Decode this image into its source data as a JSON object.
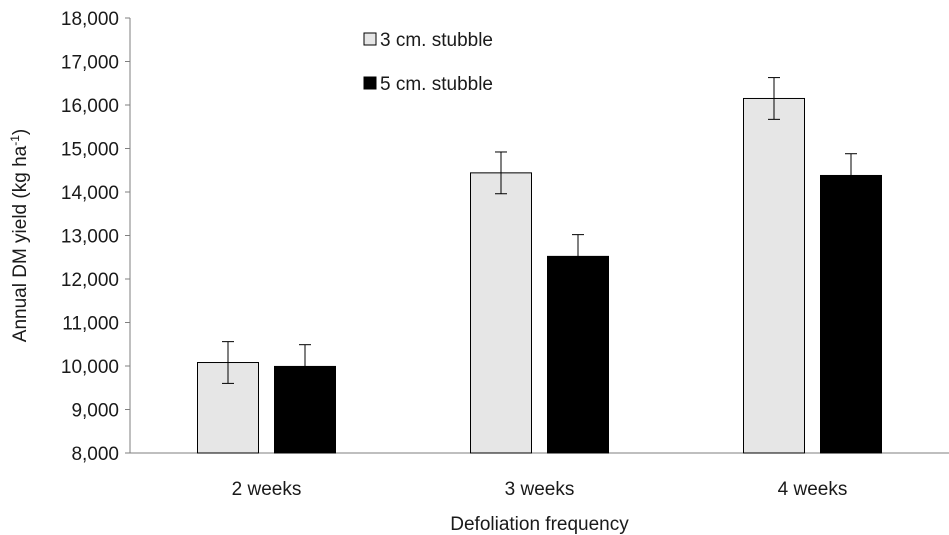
{
  "chart_data": {
    "type": "bar",
    "xlabel": "Defoliation frequency",
    "ylabel_main": "Annual DM yield (kg ha",
    "ylabel_sup": "-1",
    "ylabel_close": ")",
    "ylim": [
      8000,
      18000
    ],
    "yticks": [
      8000,
      9000,
      10000,
      11000,
      12000,
      13000,
      14000,
      15000,
      16000,
      17000,
      18000
    ],
    "ytick_labels": [
      "8,000",
      "9,000",
      "10,000",
      "11,000",
      "12,000",
      "13,000",
      "14,000",
      "15,000",
      "16,000",
      "17,000",
      "18,000"
    ],
    "categories": [
      "2 weeks",
      "3 weeks",
      "4 weeks"
    ],
    "series": [
      {
        "name": "3 cm. stubble",
        "color": "#e6e6e6",
        "values": [
          10080,
          14440,
          16150
        ],
        "errors": [
          480,
          480,
          480
        ]
      },
      {
        "name": "5 cm. stubble",
        "color": "#000000",
        "values": [
          9990,
          12520,
          14380
        ],
        "errors": [
          500,
          500,
          500
        ]
      }
    ],
    "legend_position": "top-center",
    "grid": false
  }
}
